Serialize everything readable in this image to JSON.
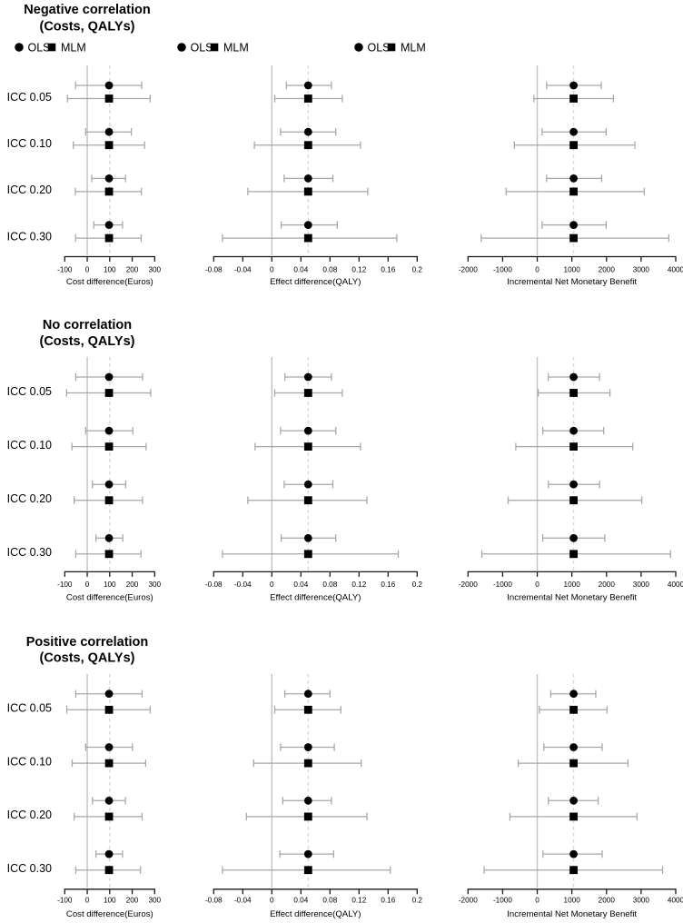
{
  "colors": {
    "background": "#ffffff",
    "marker": "#000000",
    "error_bar": "#a6a6a6",
    "zero_reference_line": "#c2c2c2",
    "true_value_reference_line": "#d9d9d9",
    "axis": "#1a1a1a",
    "text": "#000000"
  },
  "chart_data": {
    "type": "scatter",
    "subtype": "forest-plot-grid",
    "grid": "3 correlation scenarios (rows) x 3 outcome measures (columns); each group shows OLS and MLM point estimates with 95% CI error bars",
    "legend": {
      "position": "top",
      "items": [
        {
          "symbol": "circle",
          "label": "OLS"
        },
        {
          "symbol": "square",
          "label": "MLM"
        }
      ]
    },
    "row_labels": [
      "ICC 0.05",
      "ICC 0.10",
      "ICC 0.20",
      "ICC 0.30"
    ],
    "scenarios": [
      {
        "title_line1": "Negative correlation",
        "title_line2": "(Costs, QALYs)",
        "show_legend": true,
        "panels": [
          {
            "xlabel": "Cost difference(Euros)",
            "xlim": [
              -100,
              300
            ],
            "tick_values": [
              -100,
              0,
              100,
              200,
              300
            ],
            "tick_labels": [
              "-100",
              "0",
              "100",
              "200",
              "300"
            ],
            "ref_zero": 0,
            "ref_true": 100,
            "series": [
              {
                "icc": "ICC 0.05",
                "ols": {
                  "est": 97,
                  "lo": -52,
                  "hi": 242
                },
                "mlm": {
                  "est": 97,
                  "lo": -88,
                  "hi": 280
                }
              },
              {
                "icc": "ICC 0.10",
                "ols": {
                  "est": 97,
                  "lo": -7,
                  "hi": 196
                },
                "mlm": {
                  "est": 97,
                  "lo": -62,
                  "hi": 255
                }
              },
              {
                "icc": "ICC 0.20",
                "ols": {
                  "est": 97,
                  "lo": 20,
                  "hi": 170
                },
                "mlm": {
                  "est": 97,
                  "lo": -53,
                  "hi": 241
                }
              },
              {
                "icc": "ICC 0.30",
                "ols": {
                  "est": 97,
                  "lo": 29,
                  "hi": 157
                },
                "mlm": {
                  "est": 97,
                  "lo": -52,
                  "hi": 240
                }
              }
            ]
          },
          {
            "xlabel": "Effect difference(QALY)",
            "xlim": [
              -0.08,
              0.2
            ],
            "tick_values": [
              -0.08,
              -0.04,
              0,
              0.04,
              0.08,
              0.12,
              0.16,
              0.2
            ],
            "tick_labels": [
              "-0.08",
              "-0.04",
              "0",
              "0.04",
              "0.08",
              "0.12",
              "0.16",
              "0.2"
            ],
            "ref_zero": 0,
            "ref_true": 0.05,
            "series": [
              {
                "icc": "ICC 0.05",
                "ols": {
                  "est": 0.05,
                  "lo": 0.02,
                  "hi": 0.082
                },
                "mlm": {
                  "est": 0.05,
                  "lo": 0.004,
                  "hi": 0.097
                }
              },
              {
                "icc": "ICC 0.10",
                "ols": {
                  "est": 0.05,
                  "lo": 0.012,
                  "hi": 0.088
                },
                "mlm": {
                  "est": 0.05,
                  "lo": -0.024,
                  "hi": 0.122
                }
              },
              {
                "icc": "ICC 0.20",
                "ols": {
                  "est": 0.05,
                  "lo": 0.017,
                  "hi": 0.084
                },
                "mlm": {
                  "est": 0.05,
                  "lo": -0.033,
                  "hi": 0.132
                }
              },
              {
                "icc": "ICC 0.30",
                "ols": {
                  "est": 0.05,
                  "lo": 0.013,
                  "hi": 0.09
                },
                "mlm": {
                  "est": 0.05,
                  "lo": -0.068,
                  "hi": 0.172
                }
              }
            ]
          },
          {
            "xlabel": "Incremental Net Monetary Benefit",
            "xlim": [
              -2000,
              4000
            ],
            "tick_values": [
              -2000,
              -1000,
              0,
              1000,
              2000,
              3000,
              4000
            ],
            "tick_labels": [
              "-2000",
              "-1000",
              "0",
              "1000",
              "2000",
              "3000",
              "4000"
            ],
            "ref_zero": 0,
            "ref_true": 1050,
            "series": [
              {
                "icc": "ICC 0.05",
                "ols": {
                  "est": 1050,
                  "lo": 270,
                  "hi": 1850
                },
                "mlm": {
                  "est": 1050,
                  "lo": -95,
                  "hi": 2200
                }
              },
              {
                "icc": "ICC 0.10",
                "ols": {
                  "est": 1050,
                  "lo": 140,
                  "hi": 1990
                },
                "mlm": {
                  "est": 1050,
                  "lo": -660,
                  "hi": 2820
                }
              },
              {
                "icc": "ICC 0.20",
                "ols": {
                  "est": 1050,
                  "lo": 270,
                  "hi": 1860
                },
                "mlm": {
                  "est": 1050,
                  "lo": -900,
                  "hi": 3090
                }
              },
              {
                "icc": "ICC 0.30",
                "ols": {
                  "est": 1050,
                  "lo": 140,
                  "hi": 1990
                },
                "mlm": {
                  "est": 1050,
                  "lo": -1620,
                  "hi": 3800
                }
              }
            ]
          }
        ]
      },
      {
        "title_line1": "No correlation",
        "title_line2": "(Costs, QALYs)",
        "show_legend": false,
        "panels": [
          {
            "xlabel": "Cost difference(Euros)",
            "xlim": [
              -100,
              300
            ],
            "tick_values": [
              -100,
              0,
              100,
              200,
              300
            ],
            "tick_labels": [
              "-100",
              "0",
              "100",
              "200",
              "300"
            ],
            "ref_zero": 0,
            "ref_true": 100,
            "series": [
              {
                "icc": "ICC 0.05",
                "ols": {
                  "est": 97,
                  "lo": -51,
                  "hi": 246
                },
                "mlm": {
                  "est": 97,
                  "lo": -92,
                  "hi": 282
                }
              },
              {
                "icc": "ICC 0.10",
                "ols": {
                  "est": 97,
                  "lo": -7,
                  "hi": 203
                },
                "mlm": {
                  "est": 97,
                  "lo": -68,
                  "hi": 262
                }
              },
              {
                "icc": "ICC 0.20",
                "ols": {
                  "est": 97,
                  "lo": 23,
                  "hi": 171
                },
                "mlm": {
                  "est": 97,
                  "lo": -58,
                  "hi": 246
                }
              },
              {
                "icc": "ICC 0.30",
                "ols": {
                  "est": 97,
                  "lo": 39,
                  "hi": 158
                },
                "mlm": {
                  "est": 97,
                  "lo": -51,
                  "hi": 239
                }
              }
            ]
          },
          {
            "xlabel": "Effect difference(QALY)",
            "xlim": [
              -0.08,
              0.2
            ],
            "tick_values": [
              -0.08,
              -0.04,
              0,
              0.04,
              0.08,
              0.12,
              0.16,
              0.2
            ],
            "tick_labels": [
              "-0.08",
              "-0.04",
              "0",
              "0.04",
              "0.08",
              "0.12",
              "0.16",
              "0.2"
            ],
            "ref_zero": 0,
            "ref_true": 0.05,
            "series": [
              {
                "icc": "ICC 0.05",
                "ols": {
                  "est": 0.05,
                  "lo": 0.018,
                  "hi": 0.082
                },
                "mlm": {
                  "est": 0.05,
                  "lo": 0.004,
                  "hi": 0.097
                }
              },
              {
                "icc": "ICC 0.10",
                "ols": {
                  "est": 0.05,
                  "lo": 0.012,
                  "hi": 0.088
                },
                "mlm": {
                  "est": 0.05,
                  "lo": -0.023,
                  "hi": 0.122
                }
              },
              {
                "icc": "ICC 0.20",
                "ols": {
                  "est": 0.05,
                  "lo": 0.017,
                  "hi": 0.084
                },
                "mlm": {
                  "est": 0.05,
                  "lo": -0.033,
                  "hi": 0.131
                }
              },
              {
                "icc": "ICC 0.30",
                "ols": {
                  "est": 0.05,
                  "lo": 0.013,
                  "hi": 0.088
                },
                "mlm": {
                  "est": 0.05,
                  "lo": -0.068,
                  "hi": 0.174
                }
              }
            ]
          },
          {
            "xlabel": "Incremental Net Monetary Benefit",
            "xlim": [
              -2000,
              4000
            ],
            "tick_values": [
              -2000,
              -1000,
              0,
              1000,
              2000,
              3000,
              4000
            ],
            "tick_labels": [
              "-2000",
              "-1000",
              "0",
              "1000",
              "2000",
              "3000",
              "4000"
            ],
            "ref_zero": 0,
            "ref_true": 1050,
            "series": [
              {
                "icc": "ICC 0.05",
                "ols": {
                  "est": 1050,
                  "lo": 320,
                  "hi": 1800
                },
                "mlm": {
                  "est": 1050,
                  "lo": 30,
                  "hi": 2100
                }
              },
              {
                "icc": "ICC 0.10",
                "ols": {
                  "est": 1050,
                  "lo": 160,
                  "hi": 1920
                },
                "mlm": {
                  "est": 1050,
                  "lo": -620,
                  "hi": 2760
                }
              },
              {
                "icc": "ICC 0.20",
                "ols": {
                  "est": 1050,
                  "lo": 320,
                  "hi": 1800
                },
                "mlm": {
                  "est": 1050,
                  "lo": -840,
                  "hi": 3020
                }
              },
              {
                "icc": "ICC 0.30",
                "ols": {
                  "est": 1050,
                  "lo": 160,
                  "hi": 1950
                },
                "mlm": {
                  "est": 1050,
                  "lo": -1600,
                  "hi": 3850
                }
              }
            ]
          }
        ]
      },
      {
        "title_line1": "Positive correlation",
        "title_line2": "(Costs, QALYs)",
        "show_legend": false,
        "panels": [
          {
            "xlabel": "Cost difference(Euros)",
            "xlim": [
              -100,
              300
            ],
            "tick_values": [
              -100,
              0,
              100,
              200,
              300
            ],
            "tick_labels": [
              "-100",
              "0",
              "100",
              "200",
              "300"
            ],
            "ref_zero": 0,
            "ref_true": 100,
            "series": [
              {
                "icc": "ICC 0.05",
                "ols": {
                  "est": 97,
                  "lo": -51,
                  "hi": 244
                },
                "mlm": {
                  "est": 97,
                  "lo": -91,
                  "hi": 280
                }
              },
              {
                "icc": "ICC 0.10",
                "ols": {
                  "est": 97,
                  "lo": -7,
                  "hi": 201
                },
                "mlm": {
                  "est": 97,
                  "lo": -67,
                  "hi": 260
                }
              },
              {
                "icc": "ICC 0.20",
                "ols": {
                  "est": 97,
                  "lo": 23,
                  "hi": 170
                },
                "mlm": {
                  "est": 97,
                  "lo": -58,
                  "hi": 244
                }
              },
              {
                "icc": "ICC 0.30",
                "ols": {
                  "est": 97,
                  "lo": 39,
                  "hi": 157
                },
                "mlm": {
                  "est": 97,
                  "lo": -51,
                  "hi": 237
                }
              }
            ]
          },
          {
            "xlabel": "Effect difference(QALY)",
            "xlim": [
              -0.08,
              0.2
            ],
            "tick_values": [
              -0.08,
              -0.04,
              0,
              0.04,
              0.08,
              0.12,
              0.16,
              0.2
            ],
            "tick_labels": [
              "-0.08",
              "-0.04",
              "0",
              "0.04",
              "0.08",
              "0.12",
              "0.16",
              "0.2"
            ],
            "ref_zero": 0,
            "ref_true": 0.05,
            "series": [
              {
                "icc": "ICC 0.05",
                "ols": {
                  "est": 0.05,
                  "lo": 0.018,
                  "hi": 0.08
                },
                "mlm": {
                  "est": 0.05,
                  "lo": 0.004,
                  "hi": 0.095
                }
              },
              {
                "icc": "ICC 0.10",
                "ols": {
                  "est": 0.05,
                  "lo": 0.012,
                  "hi": 0.086
                },
                "mlm": {
                  "est": 0.05,
                  "lo": -0.025,
                  "hi": 0.123
                }
              },
              {
                "icc": "ICC 0.20",
                "ols": {
                  "est": 0.05,
                  "lo": 0.015,
                  "hi": 0.082
                },
                "mlm": {
                  "est": 0.05,
                  "lo": -0.035,
                  "hi": 0.131
                }
              },
              {
                "icc": "ICC 0.30",
                "ols": {
                  "est": 0.05,
                  "lo": 0.011,
                  "hi": 0.085
                },
                "mlm": {
                  "est": 0.05,
                  "lo": -0.068,
                  "hi": 0.163
                }
              }
            ]
          },
          {
            "xlabel": "Incremental Net Monetary Benefit",
            "xlim": [
              -2000,
              4000
            ],
            "tick_values": [
              -2000,
              -1000,
              0,
              1000,
              2000,
              3000,
              4000
            ],
            "tick_labels": [
              "-2000",
              "-1000",
              "0",
              "1000",
              "2000",
              "3000",
              "4000"
            ],
            "ref_zero": 0,
            "ref_true": 1050,
            "series": [
              {
                "icc": "ICC 0.05",
                "ols": {
                  "est": 1050,
                  "lo": 390,
                  "hi": 1690
                },
                "mlm": {
                  "est": 1050,
                  "lo": 60,
                  "hi": 2015
                }
              },
              {
                "icc": "ICC 0.10",
                "ols": {
                  "est": 1050,
                  "lo": 190,
                  "hi": 1875
                },
                "mlm": {
                  "est": 1050,
                  "lo": -550,
                  "hi": 2620
                }
              },
              {
                "icc": "ICC 0.20",
                "ols": {
                  "est": 1050,
                  "lo": 320,
                  "hi": 1760
                },
                "mlm": {
                  "est": 1050,
                  "lo": -790,
                  "hi": 2880
                }
              },
              {
                "icc": "ICC 0.30",
                "ols": {
                  "est": 1050,
                  "lo": 165,
                  "hi": 1875
                },
                "mlm": {
                  "est": 1050,
                  "lo": -1535,
                  "hi": 3620
                }
              }
            ]
          }
        ]
      }
    ]
  }
}
